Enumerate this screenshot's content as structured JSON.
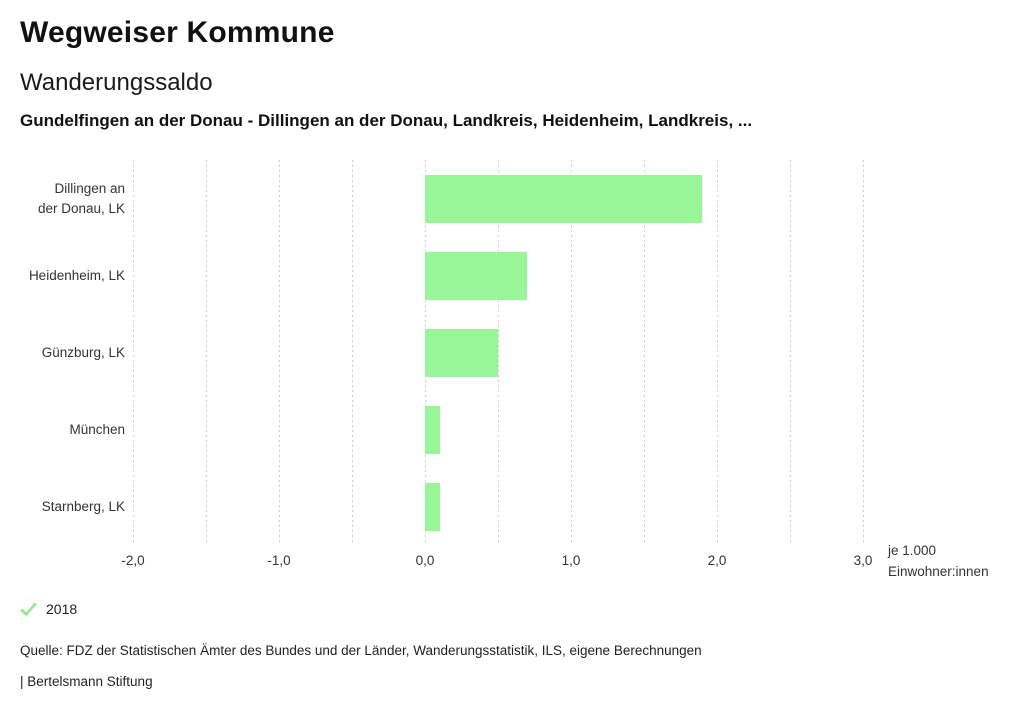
{
  "header": {
    "title": "Wegweiser Kommune",
    "subtitle": "Wanderungssaldo",
    "description": "Gundelfingen an der Donau - Dillingen an der Donau, Landkreis, Heidenheim, Landkreis, ..."
  },
  "chart_data": {
    "type": "bar",
    "orientation": "horizontal",
    "title": "Wanderungssaldo",
    "categories": [
      "Dillingen an\nder Donau, LK",
      "Heidenheim, LK",
      "Günzburg, LK",
      "München",
      "Starnberg, LK"
    ],
    "series": [
      {
        "name": "2018",
        "values": [
          1.9,
          0.7,
          0.5,
          0.1,
          0.1
        ]
      }
    ],
    "xlim": [
      -2.0,
      3.0
    ],
    "gridline_step": 0.5,
    "x_tick_values": [
      -2,
      -1,
      0,
      1,
      2,
      3
    ],
    "x_tick_labels": [
      "-2,0",
      "-1,0",
      "0,0",
      "1,0",
      "2,0",
      "3,0"
    ],
    "unit_label_line1": "je 1.000",
    "unit_label_line2": "Einwohner:innen",
    "grid": true,
    "legend": {
      "icon": "check-icon",
      "label": "2018",
      "position": "bottom-left"
    },
    "colors": {
      "bar": "#98f698",
      "legend_check": "#8ee98e",
      "gridline": "#cbcbcb",
      "text": "#333333"
    }
  },
  "footer": {
    "source": "Quelle: FDZ der Statistischen Ämter des Bundes und der Länder, Wanderungsstatistik, ILS, eigene Berechnungen",
    "branding": "| Bertelsmann Stiftung"
  }
}
